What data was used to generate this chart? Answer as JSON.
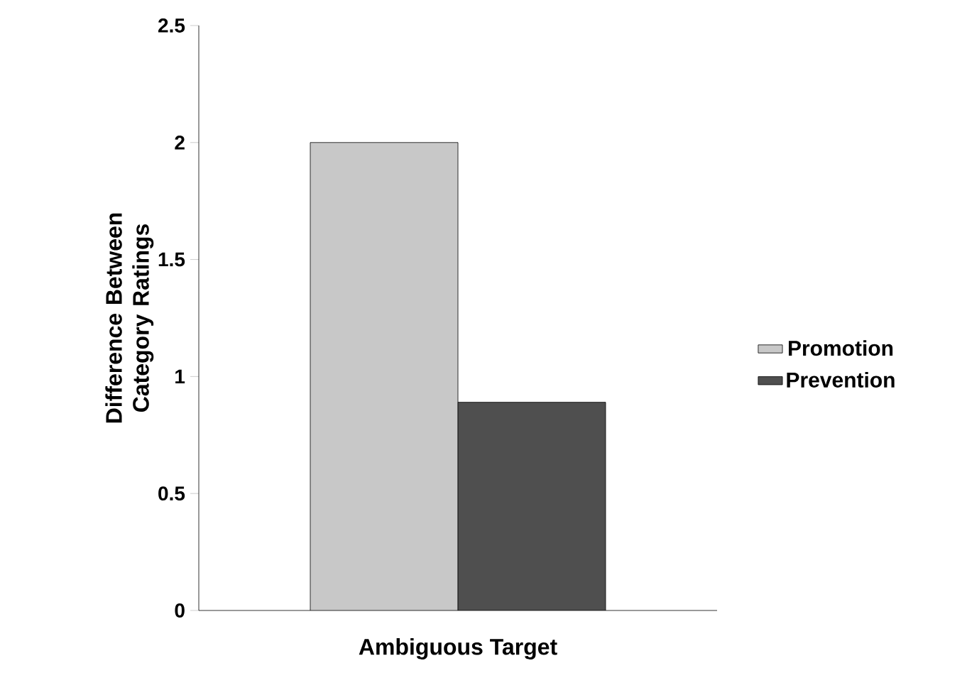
{
  "chart_data": {
    "type": "bar",
    "categories": [
      "Ambiguous Target"
    ],
    "series": [
      {
        "name": "Promotion",
        "color": "#c8c8c8",
        "values": [
          2.0
        ]
      },
      {
        "name": "Prevention",
        "color": "#4f4f4f",
        "values": [
          0.89
        ]
      }
    ],
    "ylabel": "Difference Between Category Ratings",
    "ylim": [
      0,
      2.5
    ],
    "yticks": [
      0,
      0.5,
      1,
      1.5,
      2,
      2.5
    ],
    "legend": "right",
    "grid": false
  }
}
